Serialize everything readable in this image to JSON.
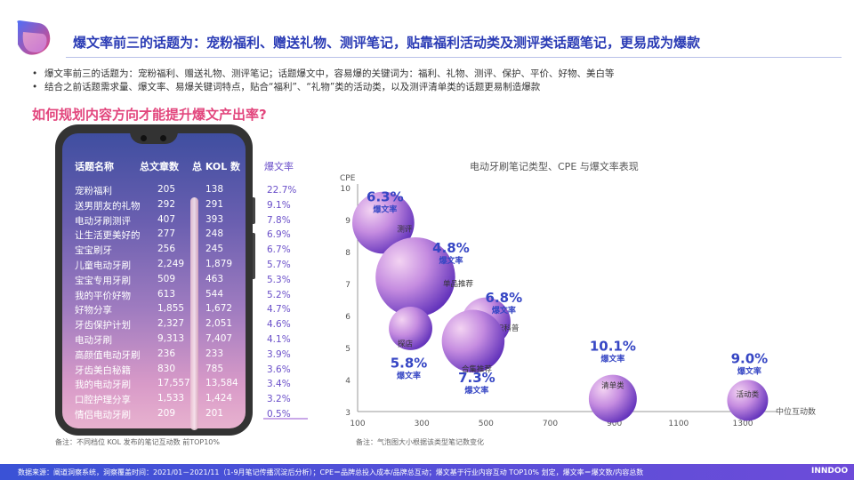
{
  "header": {
    "title": "爆文率前三的话题为：宠粉福利、赠送礼物、测评笔记，贴靠福利活动类及测评类话题笔记，更易成为爆款",
    "bullets": [
      "爆文率前三的话题为：宠粉福利、赠送礼物、测评笔记；话题爆文中，容易爆的关键词为：福利、礼物、测评、保护、平价、好物、美白等",
      "结合之前话题需求量、爆文率、易爆关键词特点，贴合“福利”、“礼物”类的活动类，以及测评清单类的话题更易制造爆款"
    ],
    "subtitle": "如何规划内容方向才能提升爆文产出率?"
  },
  "table": {
    "headers": [
      "话题名称",
      "总文章数",
      "总 KOL 数"
    ],
    "rate_header": "爆文率",
    "rows": [
      {
        "name": "宠粉福利",
        "articles": "205",
        "kol": "138",
        "rate": "22.7%"
      },
      {
        "name": "送男朋友的礼物",
        "articles": "292",
        "kol": "291",
        "rate": "9.1%"
      },
      {
        "name": "电动牙刷测评",
        "articles": "407",
        "kol": "393",
        "rate": "7.8%"
      },
      {
        "name": "让生活更美好的",
        "articles": "277",
        "kol": "248",
        "rate": "6.9%"
      },
      {
        "name": "宝宝刷牙",
        "articles": "256",
        "kol": "245",
        "rate": "6.7%"
      },
      {
        "name": "儿童电动牙刷",
        "articles": "2,249",
        "kol": "1,879",
        "rate": "5.7%"
      },
      {
        "name": "宝宝专用牙刷",
        "articles": "509",
        "kol": "463",
        "rate": "5.3%"
      },
      {
        "name": "我的平价好物",
        "articles": "613",
        "kol": "544",
        "rate": "5.2%"
      },
      {
        "name": "好物分享",
        "articles": "1,855",
        "kol": "1,672",
        "rate": "4.7%"
      },
      {
        "name": "牙齿保护计划",
        "articles": "2,327",
        "kol": "2,051",
        "rate": "4.6%"
      },
      {
        "name": "电动牙刷",
        "articles": "9,313",
        "kol": "7,407",
        "rate": "4.1%"
      },
      {
        "name": "高颜值电动牙刷",
        "articles": "236",
        "kol": "233",
        "rate": "3.9%"
      },
      {
        "name": "牙齿美白秘籍",
        "articles": "830",
        "kol": "785",
        "rate": "3.6%"
      },
      {
        "name": "我的电动牙刷",
        "articles": "17,557",
        "kol": "13,584",
        "rate": "3.4%"
      },
      {
        "name": "口腔护理分享",
        "articles": "1,533",
        "kol": "1,424",
        "rate": "3.2%"
      },
      {
        "name": "情侣电动牙刷",
        "articles": "209",
        "kol": "201",
        "rate": "0.5%"
      }
    ],
    "note": "备注：不同档位 KOL 发布的笔记互动数  前TOP10%"
  },
  "chart_data": {
    "type": "scatter",
    "title": "电动牙刷笔记类型、CPE 与爆文率表现",
    "xlabel": "中位互动数",
    "ylabel": "CPE",
    "xlim": [
      100,
      1400
    ],
    "ylim": [
      3,
      10
    ],
    "x_ticks": [
      "100",
      "300",
      "500",
      "700",
      "900",
      "1100",
      "1300"
    ],
    "y_ticks": [
      "3",
      "4",
      "5",
      "6",
      "7",
      "8",
      "9",
      "10"
    ],
    "rate_label": "爆文率",
    "points": [
      {
        "name": "测评",
        "x": 180,
        "y": 8.9,
        "size": 3.2,
        "rate": "6.3%"
      },
      {
        "name": "单品推荐",
        "x": 280,
        "y": 7.2,
        "size": 6.0,
        "rate": "4.8%"
      },
      {
        "name": "知识科普",
        "x": 500,
        "y": 5.8,
        "size": 1.7,
        "rate": "6.8%"
      },
      {
        "name": "探店",
        "x": 265,
        "y": 5.6,
        "size": 1.2,
        "rate": "5.8%"
      },
      {
        "name": "合集推荐",
        "x": 460,
        "y": 5.2,
        "size": 3.3,
        "rate": "7.3%"
      },
      {
        "name": "清单类",
        "x": 895,
        "y": 3.4,
        "size": 1.6,
        "rate": "10.1%"
      },
      {
        "name": "活动类",
        "x": 1315,
        "y": 3.35,
        "size": 1.0,
        "rate": "9.0%"
      }
    ],
    "colors": {
      "bubble_dark": "#6a2fc2",
      "bubble_light": "#e3b6ea",
      "label": "#3646c4"
    },
    "note": "备注：气泡图大小根据该类型笔记数变化"
  },
  "footer": {
    "text": "数据来源：阐道洞察系统，洞察覆盖时间：2021/01－2021/11（1-9月笔记传播沉淀后分析）；CPE＝品牌总投入成本/品牌总互动；爆文基于行业内容互动 TOP10% 划定，爆文率＝爆文数/内容总数",
    "logo": "INNDOO"
  }
}
